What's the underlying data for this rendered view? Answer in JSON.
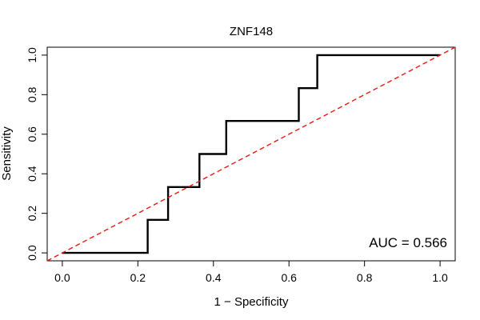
{
  "chart_data": {
    "type": "line",
    "title": "ZNF148",
    "xlabel": "1 − Specificity",
    "ylabel": "Sensitivity",
    "xlim": [
      -0.04,
      1.04
    ],
    "ylim": [
      -0.04,
      1.04
    ],
    "x_ticks": [
      0.0,
      0.2,
      0.4,
      0.6,
      0.8,
      1.0
    ],
    "x_tick_labels": [
      "0.0",
      "0.2",
      "0.4",
      "0.6",
      "0.8",
      "1.0"
    ],
    "y_ticks": [
      0.0,
      0.2,
      0.4,
      0.6,
      0.8,
      1.0
    ],
    "y_tick_labels": [
      "0.0",
      "0.2",
      "0.4",
      "0.6",
      "0.8",
      "1.0"
    ],
    "grid": false,
    "series": [
      {
        "style": "step",
        "color": "#000000",
        "x": [
          0.0,
          0.226,
          0.226,
          0.28,
          0.28,
          0.363,
          0.363,
          0.434,
          0.434,
          0.626,
          0.626,
          0.675,
          0.675,
          1.0
        ],
        "y": [
          0.0,
          0.0,
          0.167,
          0.167,
          0.333,
          0.333,
          0.5,
          0.5,
          0.667,
          0.667,
          0.833,
          0.833,
          1.0,
          1.0
        ]
      },
      {
        "style": "dashed",
        "color": "#e8190f",
        "x": [
          -0.04,
          1.04
        ],
        "y": [
          -0.04,
          1.04
        ]
      }
    ],
    "annotation": "AUC = 0.566"
  }
}
